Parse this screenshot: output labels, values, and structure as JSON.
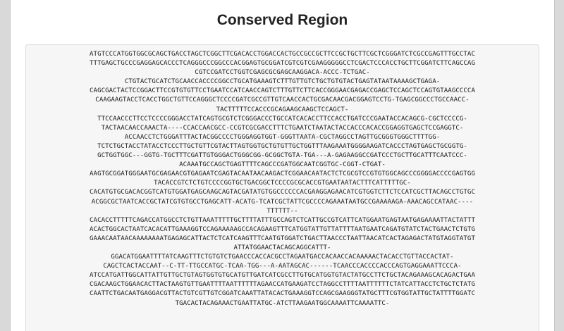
{
  "page": {
    "title": "Conserved Region"
  },
  "sequence": {
    "lines": [
      "ATGTCCCATGGTGGCGCAGCTGACCTAGCTCGGCTTCGACACCTGGACCACTGCCGCCGCTTCCGCTGCTTCGCTCGGGATCTCGCCGAGTTTGCCTAC",
      "TTTGAGCTGCCCGAGGAGCACCCTCAGGGCCCGGCCCACGGAGTGCGGATCGTCGTCGAAGGGGGCCTCGACTCCCACCTGCTTCGGATCTTCAGCCAG",
      "CGTCCGATCCTGGTCGAGCGCGAGCAAGGACA-ACCC-TCTGAC-",
      "CTGTACTGCATCTGCAACCACCCCGGCCTGCATGAAAGTCTTTGTTGTCTGCTGTGTACTGAGTATAATAAAAGCTGAGA-",
      "CAGCGACTACTCCGGACTTCCGTGTGTTCCTGAATCCATCAACCAGTCTTTGTTCTTCACCGGGAACGAGACCGAGCTCCAGCTCCAGTGTAAGCCCCA",
      "CAAGAAGTACCTCACCTGGCTGTTCCAGGGCTCCCCGATCGCCGTTGTCAACCACTGCGACAACGACGGAGTCCTG-TGAGCGGCCCTGCCAACC-",
      "TACTTTTTCCACCCGCAGAAGCAAGCTCCAGCT-",
      "TTCCAACCCTTCCTCCCCGGGACCTATCAGTGCGTCTCGGGACCCTGCCATCACACCTTCCACCTGATCCCGAATACCACAGCG-CGCTCCCCG-",
      "TACTAACAACCAAACTA----CCACCAACGCC-CCGTCGCGACCTTTCTGAATCTAATACTACCACCCACACCGGAGGTGAGCTCCGAGGTC-",
      "ACCAACCTCTGGGATTTACTACGGCCCCTGGGAGGTGGT-GGGTTAATA-CGCTAGGCCTAGTTGCGGGTGGGCTTTTGG-",
      "TCTCTGCTACCTATACCTCCCTTGCTGTTCGTACTTAGTGGTGCTGTGTTGCTGGTTTAAGAAATGGGGAAGATCACCCTAGTGAGCTGCGGTG-",
      "GCTGGTGGC---GGTG-TGCTTTCGATTGTGGGACTGGGCGG-GCGGCTGTA-TGA---A-GAGAAGGCCGATCCCTGCTTGCATTTCAATCCC-",
      "ACAAATGCCAGCTGAGTTTTCAGCCCGATGGCAATCGGTGC-CGGT-CTGAT-",
      "AAGTGCGGATGGGAATGCGAGAACGTGAGAATCGAGTACAATAACAAGACTCGGAACAATACTCTCGCGTCCGTGTGGCAGCCCGGGGACCCCGAGTGG",
      "TACACCGTCTCTGTCCCCGGTGCTGACGGCTCCCCGCGCACCGTGAATAATACTTTCATTTTTGC-",
      "CACATGTGCGACACGGTCATGTGGATGAGCAAGCAGTACGATATGTGGCCCCCCACGAAGGAGAACATCGTGGTCTTCTCCATCGCTTACAGCCTGTGC",
      "ACGGCGCTAATCACCGCTATCGTGTGCCTGAGCATT-ACATG-TCATCGCTATTCGCCCCAGAAATAATGCCGAAAAAGA-AAACAGCCATAAC----",
      "TTTTTT--",
      "CACACCTTTTTCAGACCATGGCCTCTGTTAAATTTTTGCTTTTATTTGCCAGTCTCATTGCCGTCATTCATGGAATGAGTAATGAGAAAATTACTATTT",
      "ACACTGGCACTAATCACACATTGAAAGGTCCAGAAAAAGCCACAGAAGTTTCATGGTATTGTTATTTTAATGAATCAGATGTATCTACTGAACTCTGTG",
      "GAAACAATAACAAAAAAAATGAGAGCATTACTCTCATCAAGTTTCAATGTGGATCTGACTTAACCCTAATTAACATCACTAGAGACTATGTAGGTATGT",
      "ATTATGGAACTACAGCAGGCATTT-",
      "GGACATGGAATTTTATCAAGTTTCTGTGTCTGAACCCACCACGCCTAGAATGACCACAACCACAAAAACTACACCTGTTACCACTAT-",
      "CAGCTCACTACCAAT--C-TT-TTGCCATGC-TCAA-TGG---A-AATAGCAC------TCAACCCACCCCACCCAGTGAGGAAATTCCCA-",
      "ATCCATGATTGGCATTATTGTTGCTGTAGTGGTGTGCATGTTGATCATCGCCTTGTGCATGGTGTACTATGCCTTCTGCTACAGAAAGCACAGACTGAA",
      "CGACAAGCTGGAACACTTACTAAGTGTTGAATTTTAATTTTTTAGAACCATGAAGATCCTAGGCCTTTTAATTTTTTCTATCATTACCTCTGCTCTATG",
      "CAATTCTGACAATGAGGACGTTACTGTCGTTGTCGGATCAAATTATACACTGAAAGGTCCAGCGAAGGGTATGCTTTCGTGGTATTGCTATTTTGGATC",
      "TGACACTACAGAAACTGAATTATGC-ATCTTAAGAATGGCAAAATTCAAAATTC-"
    ]
  }
}
